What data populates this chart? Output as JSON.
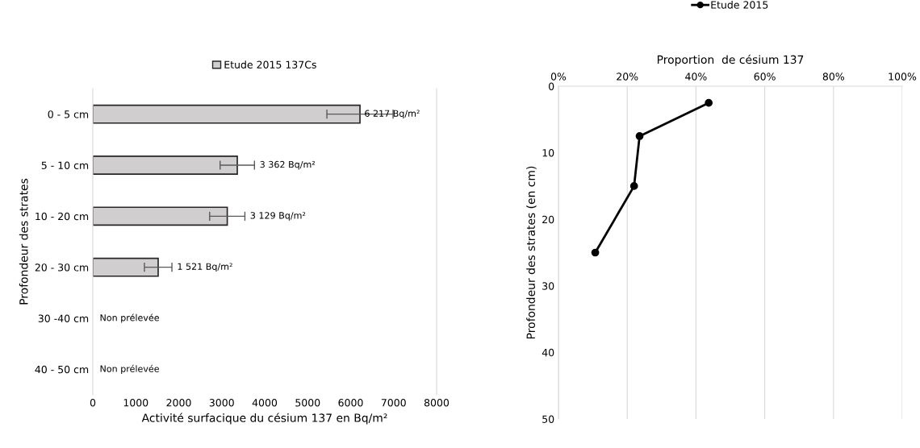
{
  "chart_data": [
    {
      "type": "bar",
      "orientation": "horizontal",
      "xlabel": "Activité surfacique du césium 137 en Bq/m²",
      "ylabel": "Profondeur des strates",
      "categories": [
        "0 - 5 cm",
        "5 - 10 cm",
        "10 - 20 cm",
        "20 - 30 cm",
        "30 -40 cm",
        "40 - 50 cm"
      ],
      "series": [
        {
          "name": "Etude 2015 137Cs",
          "color": "#d0cece",
          "values": [
            6217,
            3362,
            3129,
            1521,
            null,
            null
          ],
          "errors": [
            770,
            400,
            410,
            320,
            null,
            null
          ],
          "value_labels": [
            "6 217 Bq/m²",
            "3 362 Bq/m²",
            "3 129 Bq/m²",
            "1 521 Bq/m²",
            null,
            null
          ]
        }
      ],
      "xlim": [
        0,
        8000
      ],
      "xticks": [
        0,
        1000,
        2000,
        3000,
        4000,
        5000,
        6000,
        7000,
        8000
      ],
      "legend": "top",
      "grid": false,
      "annotations": [
        "Non prélevée",
        "Non prélevée"
      ]
    },
    {
      "type": "line",
      "xlabel": "Proportion  de césium 137",
      "ylabel": "Profondeur des strates (en cm)",
      "series": [
        {
          "name": "Etude 2015",
          "color": "#000000",
          "x": [
            43.7,
            23.6,
            22.0,
            10.7
          ],
          "values": [
            2.5,
            7.5,
            15,
            25
          ]
        }
      ],
      "xlim": [
        0,
        100
      ],
      "xticks": [
        {
          "value": 0,
          "label": "0%"
        },
        {
          "value": 20,
          "label": "20%"
        },
        {
          "value": 40,
          "label": "40%"
        },
        {
          "value": 60,
          "label": "60%"
        },
        {
          "value": 80,
          "label": "80%"
        },
        {
          "value": 100,
          "label": "100%"
        }
      ],
      "ylim": [
        50,
        0
      ],
      "yticks": [
        0,
        10,
        20,
        30,
        40,
        50
      ],
      "grid": "x",
      "legend": "top",
      "marker": "circle",
      "line_style": "solid"
    }
  ]
}
